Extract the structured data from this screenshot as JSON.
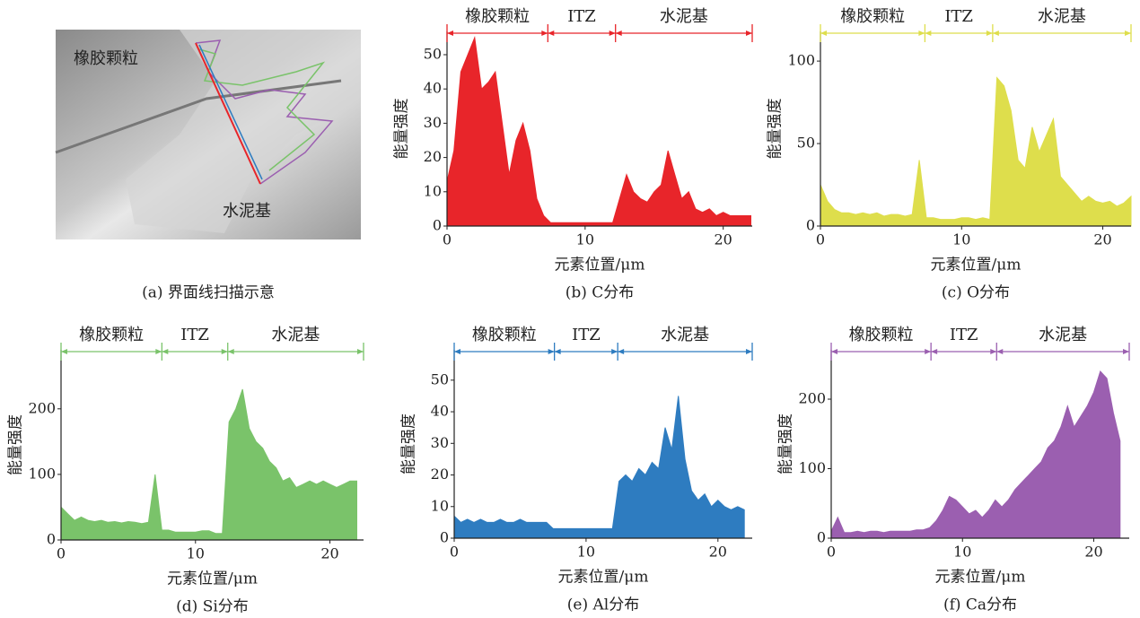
{
  "panel_a": {
    "caption": "(a) 界面线扫描示意",
    "labels": [
      "橡胶颗粒",
      "水泥基"
    ]
  },
  "chart_data": [
    {
      "type": "area",
      "caption": "(b) C分布",
      "xlabel": "元素位置/μm",
      "ylabel": "能量强度",
      "color": "#e8252a",
      "x": [
        0,
        0.5,
        1,
        1.5,
        2,
        2.5,
        3,
        3.5,
        4,
        4.5,
        5,
        5.5,
        6,
        6.5,
        7,
        7.5,
        8,
        8.5,
        9,
        9.5,
        10,
        10.5,
        11,
        11.5,
        12,
        12.5,
        13,
        13.5,
        14,
        14.5,
        15,
        15.5,
        16,
        16.5,
        17,
        17.5,
        18,
        18.5,
        19,
        19.5,
        20,
        20.5,
        21,
        21.5,
        22
      ],
      "values": [
        13,
        22,
        45,
        50,
        55,
        40,
        42,
        45,
        30,
        15,
        25,
        30,
        22,
        8,
        3,
        1,
        1,
        1,
        1,
        1,
        1,
        1,
        1,
        1,
        1,
        8,
        15,
        10,
        8,
        7,
        10,
        12,
        22,
        15,
        8,
        10,
        5,
        4,
        5,
        3,
        4,
        3,
        3,
        3,
        3
      ],
      "xlim": [
        0,
        22.1
      ],
      "ylim": [
        0,
        56.8
      ],
      "xticks": [
        0,
        10,
        20
      ],
      "yticks": [
        0,
        10,
        20,
        30,
        40,
        50
      ],
      "regions": [
        {
          "label": "橡胶颗粒",
          "from": 0,
          "to": 7.3
        },
        {
          "label": "ITZ",
          "from": 7.3,
          "to": 12.2
        },
        {
          "label": "水泥基",
          "from": 12.2,
          "to": 22.1
        }
      ]
    },
    {
      "type": "area",
      "caption": "(c) O分布",
      "xlabel": "元素位置/μm",
      "ylabel": "能量强度",
      "color": "#dede4c",
      "x": [
        0,
        0.5,
        1,
        1.5,
        2,
        2.5,
        3,
        3.5,
        4,
        4.5,
        5,
        5.5,
        6,
        6.5,
        7,
        7.5,
        8,
        8.5,
        9,
        9.5,
        10,
        10.5,
        11,
        11.5,
        12,
        12.5,
        13,
        13.5,
        14,
        14.5,
        15,
        15.5,
        16,
        16.5,
        17,
        17.5,
        18,
        18.5,
        19,
        19.5,
        20,
        20.5,
        21,
        21.5,
        22
      ],
      "values": [
        25,
        15,
        10,
        8,
        8,
        7,
        8,
        7,
        8,
        6,
        7,
        7,
        6,
        7,
        40,
        5,
        5,
        4,
        4,
        4,
        5,
        5,
        4,
        5,
        4,
        90,
        85,
        70,
        40,
        35,
        60,
        45,
        55,
        65,
        30,
        25,
        20,
        15,
        18,
        15,
        14,
        15,
        12,
        14,
        18
      ],
      "xlim": [
        0,
        22.0
      ],
      "ylim": [
        0,
        118
      ],
      "xticks": [
        0,
        10,
        20
      ],
      "yticks": [
        0,
        50,
        100
      ],
      "regions": [
        {
          "label": "橡胶颗粒",
          "from": 0,
          "to": 7.4
        },
        {
          "label": "ITZ",
          "from": 7.4,
          "to": 12.2
        },
        {
          "label": "水泥基",
          "from": 12.2,
          "to": 22.0
        }
      ]
    },
    {
      "type": "area",
      "caption": "(d) Si分布",
      "xlabel": "元素位置/μm",
      "ylabel": "能量强度",
      "color": "#7ac36a",
      "x": [
        0,
        0.5,
        1,
        1.5,
        2,
        2.5,
        3,
        3.5,
        4,
        4.5,
        5,
        5.5,
        6,
        6.5,
        7,
        7.5,
        8,
        8.5,
        9,
        9.5,
        10,
        10.5,
        11,
        11.5,
        12,
        12.5,
        13,
        13.5,
        14,
        14.5,
        15,
        15.5,
        16,
        16.5,
        17,
        17.5,
        18,
        18.5,
        19,
        19.5,
        20,
        20.5,
        21,
        21.5,
        22
      ],
      "values": [
        50,
        40,
        30,
        35,
        30,
        28,
        30,
        27,
        28,
        26,
        28,
        27,
        25,
        27,
        100,
        15,
        15,
        12,
        12,
        12,
        12,
        14,
        14,
        10,
        10,
        180,
        200,
        230,
        170,
        150,
        140,
        120,
        110,
        90,
        95,
        80,
        85,
        90,
        85,
        90,
        85,
        80,
        85,
        90,
        90
      ],
      "xlim": [
        0,
        22.5
      ],
      "ylim": [
        0,
        290
      ],
      "xticks": [
        0,
        10,
        20
      ],
      "yticks": [
        0,
        100,
        200
      ],
      "regions": [
        {
          "label": "橡胶颗粒",
          "from": 0,
          "to": 7.5
        },
        {
          "label": "ITZ",
          "from": 7.5,
          "to": 12.4
        },
        {
          "label": "水泥基",
          "from": 12.4,
          "to": 22.5
        }
      ]
    },
    {
      "type": "area",
      "caption": "(e) Al分布",
      "xlabel": "元素位置/μm",
      "ylabel": "能量强度",
      "color": "#2e7cc0",
      "x": [
        0,
        0.5,
        1,
        1.5,
        2,
        2.5,
        3,
        3.5,
        4,
        4.5,
        5,
        5.5,
        6,
        6.5,
        7,
        7.5,
        8,
        8.5,
        9,
        9.5,
        10,
        10.5,
        11,
        11.5,
        12,
        12.5,
        13,
        13.5,
        14,
        14.5,
        15,
        15.5,
        16,
        16.5,
        17,
        17.5,
        18,
        18.5,
        19,
        19.5,
        20,
        20.5,
        21,
        21.5,
        22
      ],
      "values": [
        7,
        5,
        6,
        5,
        6,
        5,
        5,
        6,
        5,
        5,
        6,
        5,
        5,
        5,
        5,
        3,
        3,
        3,
        3,
        3,
        3,
        3,
        3,
        3,
        3,
        18,
        20,
        18,
        22,
        20,
        24,
        22,
        35,
        28,
        45,
        25,
        15,
        12,
        14,
        10,
        12,
        10,
        9,
        10,
        9
      ],
      "xlim": [
        0,
        22.6
      ],
      "ylim": [
        0,
        59.6
      ],
      "xticks": [
        0,
        10,
        20
      ],
      "yticks": [
        0,
        10,
        20,
        30,
        40,
        50
      ],
      "regions": [
        {
          "label": "橡胶颗粒",
          "from": 0,
          "to": 7.6
        },
        {
          "label": "ITZ",
          "from": 7.6,
          "to": 12.4
        },
        {
          "label": "水泥基",
          "from": 12.4,
          "to": 22.6
        }
      ]
    },
    {
      "type": "area",
      "caption": "(f) Ca分布",
      "xlabel": "元素位置/μm",
      "ylabel": "能量强度",
      "color": "#9b5fb0",
      "x": [
        0,
        0.5,
        1,
        1.5,
        2,
        2.5,
        3,
        3.5,
        4,
        4.5,
        5,
        5.5,
        6,
        6.5,
        7,
        7.5,
        8,
        8.5,
        9,
        9.5,
        10,
        10.5,
        11,
        11.5,
        12,
        12.5,
        13,
        13.5,
        14,
        14.5,
        15,
        15.5,
        16,
        16.5,
        17,
        17.5,
        18,
        18.5,
        19,
        19.5,
        20,
        20.5,
        21,
        21.5,
        22
      ],
      "values": [
        10,
        30,
        8,
        8,
        10,
        8,
        10,
        10,
        8,
        10,
        10,
        10,
        10,
        12,
        12,
        15,
        25,
        40,
        60,
        55,
        45,
        35,
        40,
        30,
        40,
        55,
        45,
        55,
        70,
        80,
        90,
        100,
        110,
        130,
        140,
        160,
        190,
        160,
        175,
        190,
        210,
        240,
        230,
        180,
        140
      ],
      "xlim": [
        0,
        22.7
      ],
      "ylim": [
        0,
        271
      ],
      "xticks": [
        0,
        10,
        20
      ],
      "yticks": [
        0,
        100,
        200
      ],
      "regions": [
        {
          "label": "橡胶颗粒",
          "from": 0,
          "to": 7.6
        },
        {
          "label": "ITZ",
          "from": 7.6,
          "to": 12.6
        },
        {
          "label": "水泥基",
          "from": 12.6,
          "to": 22.7
        }
      ]
    }
  ]
}
